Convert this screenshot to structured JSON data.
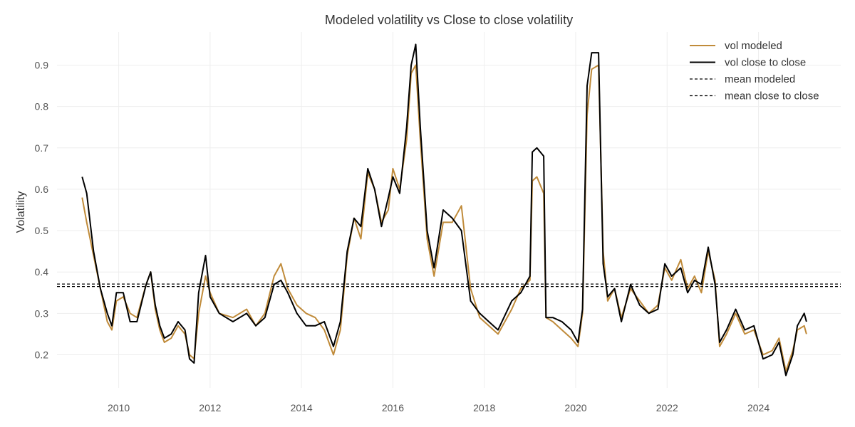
{
  "chart_data": {
    "type": "line",
    "title": "Modeled volatility vs Close to close volatility",
    "xlabel": "",
    "ylabel": "Volatility",
    "xlim": [
      2008.65,
      2025.8
    ],
    "ylim": [
      0.12,
      0.98
    ],
    "x_ticks": [
      2010,
      2012,
      2014,
      2016,
      2018,
      2020,
      2022,
      2024
    ],
    "x_tick_labels": [
      "2010",
      "2012",
      "2014",
      "2016",
      "2018",
      "2020",
      "2022",
      "2024"
    ],
    "y_ticks": [
      0.2,
      0.3,
      0.4,
      0.5,
      0.6,
      0.7,
      0.8,
      0.9
    ],
    "y_tick_labels": [
      "0.2",
      "0.3",
      "0.4",
      "0.5",
      "0.6",
      "0.7",
      "0.8",
      "0.9"
    ],
    "grid": true,
    "legend_position": "top-right",
    "series": [
      {
        "name": "vol modeled",
        "color": "#c08b3a",
        "style": "solid",
        "points": [
          [
            2009.2,
            0.58
          ],
          [
            2009.3,
            0.52
          ],
          [
            2009.45,
            0.44
          ],
          [
            2009.6,
            0.36
          ],
          [
            2009.75,
            0.28
          ],
          [
            2009.85,
            0.26
          ],
          [
            2009.95,
            0.33
          ],
          [
            2010.1,
            0.34
          ],
          [
            2010.25,
            0.3
          ],
          [
            2010.4,
            0.29
          ],
          [
            2010.6,
            0.37
          ],
          [
            2010.7,
            0.4
          ],
          [
            2010.8,
            0.31
          ],
          [
            2010.9,
            0.26
          ],
          [
            2011.0,
            0.23
          ],
          [
            2011.15,
            0.24
          ],
          [
            2011.3,
            0.27
          ],
          [
            2011.45,
            0.25
          ],
          [
            2011.55,
            0.2
          ],
          [
            2011.65,
            0.19
          ],
          [
            2011.75,
            0.3
          ],
          [
            2011.9,
            0.39
          ],
          [
            2012.0,
            0.35
          ],
          [
            2012.2,
            0.3
          ],
          [
            2012.5,
            0.29
          ],
          [
            2012.8,
            0.31
          ],
          [
            2013.0,
            0.27
          ],
          [
            2013.2,
            0.3
          ],
          [
            2013.4,
            0.39
          ],
          [
            2013.55,
            0.42
          ],
          [
            2013.7,
            0.36
          ],
          [
            2013.9,
            0.32
          ],
          [
            2014.1,
            0.3
          ],
          [
            2014.3,
            0.29
          ],
          [
            2014.5,
            0.26
          ],
          [
            2014.7,
            0.2
          ],
          [
            2014.85,
            0.26
          ],
          [
            2015.0,
            0.44
          ],
          [
            2015.15,
            0.53
          ],
          [
            2015.3,
            0.48
          ],
          [
            2015.45,
            0.64
          ],
          [
            2015.6,
            0.6
          ],
          [
            2015.75,
            0.52
          ],
          [
            2015.9,
            0.55
          ],
          [
            2016.0,
            0.65
          ],
          [
            2016.15,
            0.6
          ],
          [
            2016.3,
            0.72
          ],
          [
            2016.4,
            0.88
          ],
          [
            2016.5,
            0.9
          ],
          [
            2016.6,
            0.72
          ],
          [
            2016.75,
            0.48
          ],
          [
            2016.9,
            0.39
          ],
          [
            2017.1,
            0.52
          ],
          [
            2017.3,
            0.52
          ],
          [
            2017.5,
            0.56
          ],
          [
            2017.7,
            0.36
          ],
          [
            2017.9,
            0.29
          ],
          [
            2018.1,
            0.27
          ],
          [
            2018.3,
            0.25
          ],
          [
            2018.6,
            0.31
          ],
          [
            2018.8,
            0.36
          ],
          [
            2019.0,
            0.38
          ],
          [
            2019.05,
            0.62
          ],
          [
            2019.15,
            0.63
          ],
          [
            2019.3,
            0.59
          ],
          [
            2019.35,
            0.29
          ],
          [
            2019.5,
            0.28
          ],
          [
            2019.7,
            0.26
          ],
          [
            2019.9,
            0.24
          ],
          [
            2020.05,
            0.22
          ],
          [
            2020.15,
            0.3
          ],
          [
            2020.25,
            0.78
          ],
          [
            2020.35,
            0.89
          ],
          [
            2020.5,
            0.9
          ],
          [
            2020.6,
            0.45
          ],
          [
            2020.7,
            0.33
          ],
          [
            2020.85,
            0.36
          ],
          [
            2021.0,
            0.29
          ],
          [
            2021.2,
            0.36
          ],
          [
            2021.4,
            0.33
          ],
          [
            2021.6,
            0.3
          ],
          [
            2021.8,
            0.32
          ],
          [
            2021.95,
            0.41
          ],
          [
            2022.1,
            0.38
          ],
          [
            2022.3,
            0.43
          ],
          [
            2022.45,
            0.36
          ],
          [
            2022.6,
            0.39
          ],
          [
            2022.75,
            0.35
          ],
          [
            2022.9,
            0.45
          ],
          [
            2023.05,
            0.38
          ],
          [
            2023.15,
            0.22
          ],
          [
            2023.3,
            0.25
          ],
          [
            2023.5,
            0.3
          ],
          [
            2023.7,
            0.25
          ],
          [
            2023.9,
            0.26
          ],
          [
            2024.1,
            0.2
          ],
          [
            2024.3,
            0.21
          ],
          [
            2024.45,
            0.24
          ],
          [
            2024.6,
            0.16
          ],
          [
            2024.75,
            0.21
          ],
          [
            2024.85,
            0.26
          ],
          [
            2025.0,
            0.27
          ],
          [
            2025.05,
            0.25
          ]
        ]
      },
      {
        "name": "vol close to close",
        "color": "#000000",
        "style": "solid",
        "points": [
          [
            2009.2,
            0.63
          ],
          [
            2009.3,
            0.59
          ],
          [
            2009.45,
            0.45
          ],
          [
            2009.6,
            0.36
          ],
          [
            2009.75,
            0.3
          ],
          [
            2009.85,
            0.27
          ],
          [
            2009.95,
            0.35
          ],
          [
            2010.1,
            0.35
          ],
          [
            2010.25,
            0.28
          ],
          [
            2010.4,
            0.28
          ],
          [
            2010.6,
            0.37
          ],
          [
            2010.7,
            0.4
          ],
          [
            2010.8,
            0.32
          ],
          [
            2010.9,
            0.27
          ],
          [
            2011.0,
            0.24
          ],
          [
            2011.15,
            0.25
          ],
          [
            2011.3,
            0.28
          ],
          [
            2011.45,
            0.26
          ],
          [
            2011.55,
            0.19
          ],
          [
            2011.65,
            0.18
          ],
          [
            2011.75,
            0.35
          ],
          [
            2011.9,
            0.44
          ],
          [
            2012.0,
            0.34
          ],
          [
            2012.2,
            0.3
          ],
          [
            2012.5,
            0.28
          ],
          [
            2012.8,
            0.3
          ],
          [
            2013.0,
            0.27
          ],
          [
            2013.2,
            0.29
          ],
          [
            2013.4,
            0.37
          ],
          [
            2013.55,
            0.38
          ],
          [
            2013.7,
            0.35
          ],
          [
            2013.9,
            0.3
          ],
          [
            2014.1,
            0.27
          ],
          [
            2014.3,
            0.27
          ],
          [
            2014.5,
            0.28
          ],
          [
            2014.7,
            0.22
          ],
          [
            2014.85,
            0.28
          ],
          [
            2015.0,
            0.45
          ],
          [
            2015.15,
            0.53
          ],
          [
            2015.3,
            0.51
          ],
          [
            2015.45,
            0.65
          ],
          [
            2015.6,
            0.6
          ],
          [
            2015.75,
            0.51
          ],
          [
            2015.9,
            0.58
          ],
          [
            2016.0,
            0.63
          ],
          [
            2016.15,
            0.59
          ],
          [
            2016.3,
            0.75
          ],
          [
            2016.4,
            0.9
          ],
          [
            2016.5,
            0.95
          ],
          [
            2016.6,
            0.75
          ],
          [
            2016.75,
            0.5
          ],
          [
            2016.9,
            0.41
          ],
          [
            2017.1,
            0.55
          ],
          [
            2017.3,
            0.53
          ],
          [
            2017.5,
            0.5
          ],
          [
            2017.7,
            0.33
          ],
          [
            2017.9,
            0.3
          ],
          [
            2018.1,
            0.28
          ],
          [
            2018.3,
            0.26
          ],
          [
            2018.6,
            0.33
          ],
          [
            2018.8,
            0.35
          ],
          [
            2019.0,
            0.39
          ],
          [
            2019.05,
            0.69
          ],
          [
            2019.15,
            0.7
          ],
          [
            2019.3,
            0.68
          ],
          [
            2019.35,
            0.29
          ],
          [
            2019.5,
            0.29
          ],
          [
            2019.7,
            0.28
          ],
          [
            2019.9,
            0.26
          ],
          [
            2020.05,
            0.23
          ],
          [
            2020.15,
            0.31
          ],
          [
            2020.25,
            0.85
          ],
          [
            2020.35,
            0.93
          ],
          [
            2020.5,
            0.93
          ],
          [
            2020.6,
            0.42
          ],
          [
            2020.7,
            0.34
          ],
          [
            2020.85,
            0.36
          ],
          [
            2021.0,
            0.28
          ],
          [
            2021.2,
            0.37
          ],
          [
            2021.4,
            0.32
          ],
          [
            2021.6,
            0.3
          ],
          [
            2021.8,
            0.31
          ],
          [
            2021.95,
            0.42
          ],
          [
            2022.1,
            0.39
          ],
          [
            2022.3,
            0.41
          ],
          [
            2022.45,
            0.35
          ],
          [
            2022.6,
            0.38
          ],
          [
            2022.75,
            0.37
          ],
          [
            2022.9,
            0.46
          ],
          [
            2023.05,
            0.37
          ],
          [
            2023.15,
            0.23
          ],
          [
            2023.3,
            0.26
          ],
          [
            2023.5,
            0.31
          ],
          [
            2023.7,
            0.26
          ],
          [
            2023.9,
            0.27
          ],
          [
            2024.1,
            0.19
          ],
          [
            2024.3,
            0.2
          ],
          [
            2024.45,
            0.23
          ],
          [
            2024.6,
            0.15
          ],
          [
            2024.75,
            0.2
          ],
          [
            2024.85,
            0.27
          ],
          [
            2025.0,
            0.3
          ],
          [
            2025.05,
            0.28
          ]
        ]
      },
      {
        "name": "mean modeled",
        "color": "#000000",
        "style": "dashed",
        "points": [
          [
            2008.65,
            0.365
          ],
          [
            2025.8,
            0.365
          ]
        ]
      },
      {
        "name": "mean close to close",
        "color": "#000000",
        "style": "dashed",
        "points": [
          [
            2008.65,
            0.371
          ],
          [
            2025.8,
            0.371
          ]
        ]
      }
    ]
  }
}
